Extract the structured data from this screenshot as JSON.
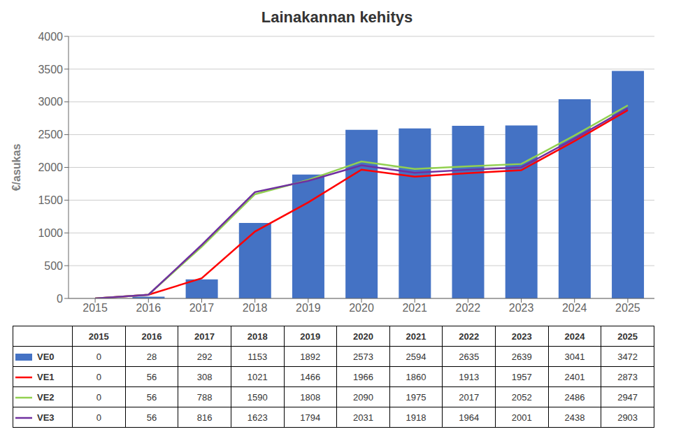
{
  "chart_data": {
    "type": "bar",
    "title": "Lainakannan kehitys",
    "ylabel": "€/asukas",
    "categories": [
      "2015",
      "2016",
      "2017",
      "2018",
      "2019",
      "2020",
      "2021",
      "2022",
      "2023",
      "2024",
      "2025"
    ],
    "series": [
      {
        "name": "VE0",
        "type": "bar",
        "color": "#4472C4",
        "values": [
          0,
          28,
          292,
          1153,
          1892,
          2573,
          2594,
          2635,
          2639,
          3041,
          3472
        ]
      },
      {
        "name": "VE1",
        "type": "line",
        "color": "#FF0000",
        "values": [
          0,
          56,
          308,
          1021,
          1466,
          1966,
          1860,
          1913,
          1957,
          2401,
          2873
        ]
      },
      {
        "name": "VE2",
        "type": "line",
        "color": "#92D050",
        "values": [
          0,
          56,
          788,
          1590,
          1808,
          2090,
          1975,
          2017,
          2052,
          2486,
          2947
        ]
      },
      {
        "name": "VE3",
        "type": "line",
        "color": "#7030A0",
        "values": [
          0,
          56,
          816,
          1623,
          1794,
          2031,
          1918,
          1964,
          2001,
          2438,
          2903
        ]
      }
    ],
    "ylim": [
      0,
      4000
    ],
    "yticks": [
      0,
      500,
      1000,
      1500,
      2000,
      2500,
      3000,
      3500,
      4000
    ],
    "grid": true
  }
}
